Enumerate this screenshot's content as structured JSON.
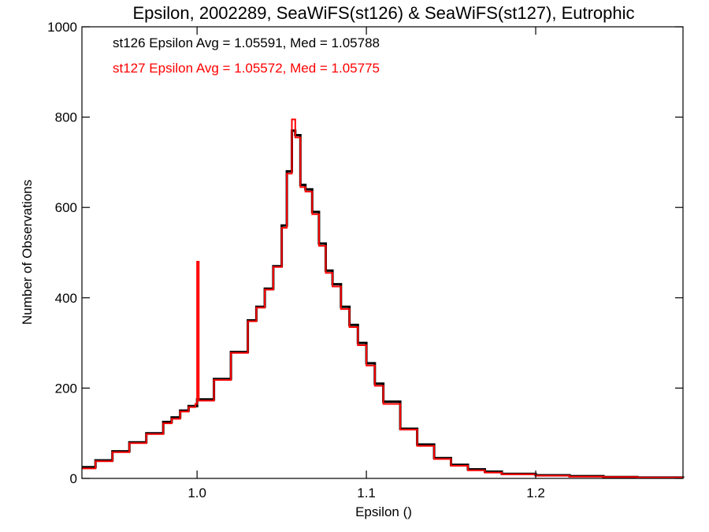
{
  "chart_data": {
    "type": "line",
    "title": "Epsilon, 2002289, SeaWiFS(st126) & SeaWiFS(st127), Eutrophic",
    "xlabel": "Epsilon ()",
    "ylabel": "Number of Observations",
    "xlim": [
      0.932,
      1.287
    ],
    "ylim": [
      0,
      1000
    ],
    "grid": false,
    "x_ticks": [
      {
        "value": 1.0,
        "label": "1.0"
      },
      {
        "value": 1.1,
        "label": "1.1"
      },
      {
        "value": 1.2,
        "label": "1.2"
      }
    ],
    "y_ticks": [
      {
        "value": 0,
        "label": "0"
      },
      {
        "value": 200,
        "label": "200"
      },
      {
        "value": 400,
        "label": "400"
      },
      {
        "value": 600,
        "label": "600"
      },
      {
        "value": 800,
        "label": "800"
      },
      {
        "value": 1000,
        "label": "1000"
      }
    ],
    "annotations": [
      {
        "text": "st126 Epsilon Avg = 1.05591, Med = 1.05788",
        "color": "#000000"
      },
      {
        "text": "st127 Epsilon Avg = 1.05572, Med = 1.05775",
        "color": "#ff0000"
      }
    ],
    "series": [
      {
        "color": "#000000",
        "x": [
          0.932,
          0.94,
          0.95,
          0.96,
          0.97,
          0.98,
          0.985,
          0.99,
          0.995,
          1.0,
          1.01,
          1.02,
          1.03,
          1.035,
          1.04,
          1.045,
          1.05,
          1.053,
          1.056,
          1.058,
          1.061,
          1.064,
          1.068,
          1.072,
          1.076,
          1.08,
          1.085,
          1.09,
          1.095,
          1.1,
          1.105,
          1.11,
          1.12,
          1.13,
          1.14,
          1.15,
          1.16,
          1.17,
          1.18,
          1.2,
          1.22,
          1.24,
          1.26,
          1.287
        ],
        "y": [
          25,
          40,
          60,
          80,
          100,
          125,
          135,
          150,
          160,
          175,
          220,
          280,
          350,
          380,
          420,
          470,
          560,
          680,
          770,
          760,
          650,
          640,
          590,
          520,
          460,
          430,
          380,
          340,
          300,
          255,
          210,
          170,
          110,
          75,
          45,
          30,
          20,
          15,
          10,
          7,
          5,
          3,
          2,
          1
        ]
      },
      {
        "color": "#ff0000",
        "x": [
          0.932,
          0.94,
          0.95,
          0.96,
          0.97,
          0.98,
          0.985,
          0.99,
          0.995,
          0.999,
          1.0,
          1.001,
          1.01,
          1.02,
          1.03,
          1.035,
          1.04,
          1.045,
          1.05,
          1.053,
          1.056,
          1.058,
          1.061,
          1.064,
          1.068,
          1.072,
          1.076,
          1.08,
          1.085,
          1.09,
          1.095,
          1.1,
          1.105,
          1.11,
          1.12,
          1.13,
          1.14,
          1.15,
          1.16,
          1.17,
          1.18,
          1.2,
          1.22,
          1.24,
          1.26,
          1.287
        ],
        "y": [
          22,
          38,
          58,
          78,
          98,
          122,
          132,
          148,
          158,
          165,
          480,
          172,
          218,
          278,
          348,
          378,
          418,
          468,
          555,
          675,
          795,
          755,
          645,
          635,
          585,
          515,
          455,
          425,
          375,
          335,
          295,
          250,
          205,
          165,
          108,
          72,
          43,
          28,
          18,
          13,
          9,
          6,
          4,
          3,
          2,
          1
        ]
      }
    ]
  }
}
